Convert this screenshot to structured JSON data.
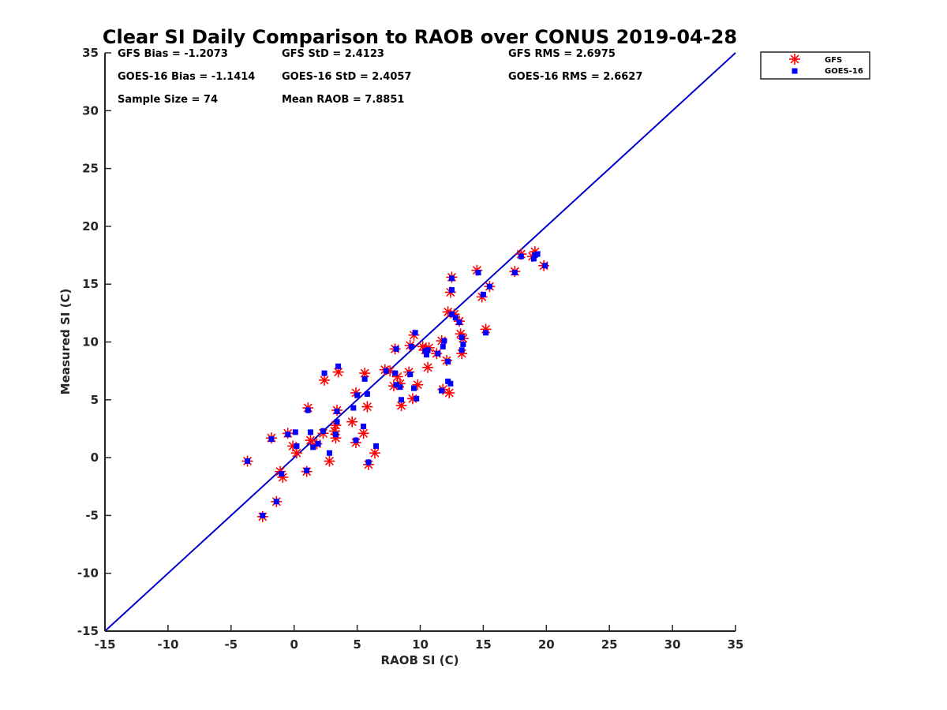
{
  "chart_data": {
    "type": "scatter",
    "title": "Clear SI Daily Comparison to RAOB over CONUS 2019-04-28",
    "xlabel": "RAOB SI (C)",
    "ylabel": "Measured SI (C)",
    "xlim": [
      -15,
      35
    ],
    "ylim": [
      -15,
      35
    ],
    "xticks": [
      -15,
      -10,
      -5,
      0,
      5,
      10,
      15,
      20,
      25,
      30,
      35
    ],
    "yticks": [
      -15,
      -10,
      -5,
      0,
      5,
      10,
      15,
      20,
      25,
      30,
      35
    ],
    "grid": false,
    "legend_position": "top-right outside",
    "stats": [
      [
        "GFS Bias = -1.2073",
        "GFS StD = 2.4123",
        "GFS RMS = 2.6975"
      ],
      [
        "GOES-16 Bias = -1.1414",
        "GOES-16 StD = 2.4057",
        "GOES-16 RMS = 2.6627"
      ],
      [
        "Sample Size = 74",
        "Mean RAOB = 7.8851",
        ""
      ]
    ],
    "reference_line": {
      "from": [
        -15,
        -15
      ],
      "to": [
        35,
        35
      ],
      "color": "#0000cc"
    },
    "series": [
      {
        "name": "GFS",
        "marker": "asterisk",
        "color": "#ff0000",
        "points": [
          [
            -3.7,
            -0.3
          ],
          [
            -2.5,
            -5.1
          ],
          [
            -1.8,
            1.7
          ],
          [
            -1.4,
            -3.8
          ],
          [
            -1.1,
            -1.2
          ],
          [
            -0.9,
            -1.7
          ],
          [
            -0.5,
            2.1
          ],
          [
            -0.1,
            1.0
          ],
          [
            0.2,
            0.4
          ],
          [
            1.0,
            -1.2
          ],
          [
            1.1,
            4.3
          ],
          [
            1.3,
            1.5
          ],
          [
            1.8,
            1.2
          ],
          [
            2.3,
            2.1
          ],
          [
            2.4,
            6.7
          ],
          [
            2.8,
            -0.3
          ],
          [
            3.2,
            2.3
          ],
          [
            3.3,
            1.7
          ],
          [
            3.3,
            2.8
          ],
          [
            3.4,
            4.1
          ],
          [
            3.5,
            7.4
          ],
          [
            4.6,
            3.1
          ],
          [
            4.9,
            1.3
          ],
          [
            4.9,
            5.6
          ],
          [
            5.5,
            2.1
          ],
          [
            5.6,
            7.3
          ],
          [
            5.8,
            4.4
          ],
          [
            5.9,
            -0.6
          ],
          [
            6.4,
            0.4
          ],
          [
            7.2,
            7.6
          ],
          [
            7.6,
            7.5
          ],
          [
            7.9,
            6.2
          ],
          [
            8.0,
            9.4
          ],
          [
            8.2,
            7.0
          ],
          [
            8.4,
            6.4
          ],
          [
            8.5,
            4.5
          ],
          [
            9.1,
            7.4
          ],
          [
            9.2,
            9.7
          ],
          [
            9.4,
            5.1
          ],
          [
            9.5,
            10.6
          ],
          [
            9.8,
            6.3
          ],
          [
            10.2,
            9.6
          ],
          [
            10.4,
            9.3
          ],
          [
            10.6,
            7.8
          ],
          [
            10.7,
            9.5
          ],
          [
            11.3,
            9.0
          ],
          [
            11.7,
            10.1
          ],
          [
            11.8,
            5.9
          ],
          [
            12.1,
            8.4
          ],
          [
            12.2,
            12.6
          ],
          [
            12.3,
            5.6
          ],
          [
            12.4,
            14.3
          ],
          [
            12.5,
            15.6
          ],
          [
            12.7,
            12.4
          ],
          [
            13.1,
            11.8
          ],
          [
            13.2,
            10.7
          ],
          [
            13.3,
            9.0
          ],
          [
            13.4,
            10.3
          ],
          [
            14.5,
            16.2
          ],
          [
            14.9,
            13.9
          ],
          [
            15.2,
            11.1
          ],
          [
            15.5,
            14.8
          ],
          [
            17.5,
            16.1
          ],
          [
            18.0,
            17.6
          ],
          [
            18.9,
            17.4
          ],
          [
            19.1,
            17.8
          ],
          [
            19.8,
            16.6
          ]
        ]
      },
      {
        "name": "GOES-16",
        "marker": "square",
        "color": "#0000ff",
        "points": [
          [
            -3.7,
            -0.3
          ],
          [
            -2.5,
            -5.0
          ],
          [
            -1.8,
            1.6
          ],
          [
            -1.4,
            -3.8
          ],
          [
            -1.0,
            -1.4
          ],
          [
            -0.5,
            2.0
          ],
          [
            0.1,
            2.2
          ],
          [
            0.2,
            1.0
          ],
          [
            1.0,
            -1.1
          ],
          [
            1.1,
            4.1
          ],
          [
            1.3,
            2.2
          ],
          [
            1.5,
            0.9
          ],
          [
            1.9,
            1.2
          ],
          [
            2.3,
            2.3
          ],
          [
            2.4,
            7.3
          ],
          [
            2.8,
            0.4
          ],
          [
            3.3,
            2.0
          ],
          [
            3.4,
            3.1
          ],
          [
            3.4,
            4.0
          ],
          [
            3.5,
            7.9
          ],
          [
            4.7,
            4.3
          ],
          [
            4.9,
            1.5
          ],
          [
            5.0,
            5.4
          ],
          [
            5.5,
            2.7
          ],
          [
            5.6,
            6.8
          ],
          [
            5.8,
            5.5
          ],
          [
            5.9,
            -0.4
          ],
          [
            6.5,
            1.0
          ],
          [
            7.3,
            7.5
          ],
          [
            8.0,
            7.3
          ],
          [
            8.1,
            6.3
          ],
          [
            8.1,
            9.4
          ],
          [
            8.4,
            6.1
          ],
          [
            8.5,
            5.0
          ],
          [
            9.2,
            7.2
          ],
          [
            9.3,
            9.6
          ],
          [
            9.5,
            6.0
          ],
          [
            9.6,
            10.8
          ],
          [
            9.7,
            5.1
          ],
          [
            10.4,
            9.2
          ],
          [
            10.5,
            8.9
          ],
          [
            10.6,
            9.3
          ],
          [
            11.4,
            9.0
          ],
          [
            11.7,
            5.8
          ],
          [
            11.8,
            9.6
          ],
          [
            11.9,
            10.1
          ],
          [
            12.2,
            6.6
          ],
          [
            12.2,
            8.3
          ],
          [
            12.4,
            6.4
          ],
          [
            12.5,
            14.5
          ],
          [
            12.5,
            15.5
          ],
          [
            12.5,
            12.4
          ],
          [
            12.8,
            12.1
          ],
          [
            13.1,
            11.7
          ],
          [
            13.3,
            9.3
          ],
          [
            13.3,
            10.4
          ],
          [
            13.4,
            9.8
          ],
          [
            14.6,
            16.0
          ],
          [
            15.0,
            14.1
          ],
          [
            15.2,
            10.8
          ],
          [
            15.5,
            14.8
          ],
          [
            17.5,
            16.0
          ],
          [
            18.0,
            17.4
          ],
          [
            19.0,
            17.2
          ],
          [
            19.1,
            17.5
          ],
          [
            19.3,
            17.6
          ],
          [
            19.9,
            16.6
          ]
        ]
      }
    ]
  }
}
